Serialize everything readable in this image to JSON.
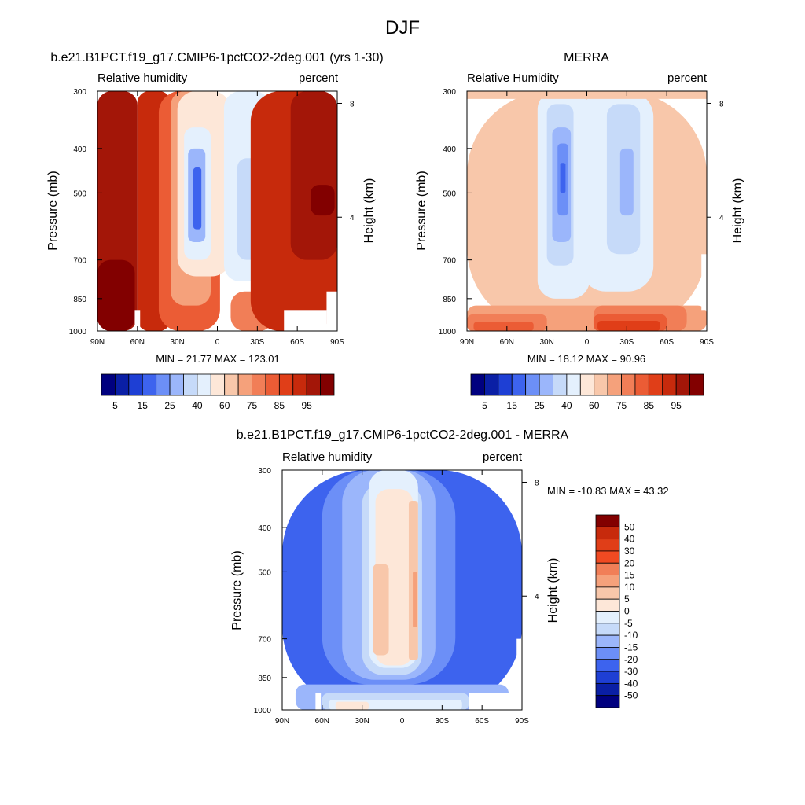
{
  "figure_title": "DJF",
  "chart_data": [
    {
      "type": "heatmap",
      "id": "model",
      "title": "b.e21.B1PCT.f19_g17.CMIP6-1pctCO2-2deg.001 (yrs 1-30)",
      "left_label": "Relative humidity",
      "right_label": "percent",
      "xlabel": "",
      "ylabel": "Pressure (mb)",
      "y2label": "Height (km)",
      "x_ticks": [
        "90N",
        "60N",
        "30N",
        "0",
        "30S",
        "60S",
        "90S"
      ],
      "y_ticks": [
        "300",
        "400",
        "500",
        "700",
        "850",
        "1000"
      ],
      "y_tick_values": [
        300,
        400,
        500,
        700,
        850,
        1000
      ],
      "y2_ticks": [
        "8",
        "4"
      ],
      "y2_tick_values": [
        8,
        4
      ],
      "xlim": [
        90,
        -90
      ],
      "ylim": [
        1000,
        300
      ],
      "stats": "MIN =  21.77  MAX = 123.01",
      "colorbar": {
        "orientation": "horizontal",
        "labels": [
          "5",
          "15",
          "25",
          "40",
          "60",
          "75",
          "85",
          "95"
        ],
        "colors": [
          "#00007f",
          "#0a1fa5",
          "#1e3fd4",
          "#3d63ee",
          "#6c8ff7",
          "#9bb6fb",
          "#c6daf9",
          "#e4f0fd",
          "#fde7d8",
          "#f8c7aa",
          "#f5a17b",
          "#f17e57",
          "#eb5c35",
          "#e03e18",
          "#c72a0c",
          "#a31608",
          "#820000"
        ]
      },
      "regions": [
        {
          "level": 15,
          "lat": [
            90,
            60
          ],
          "p": [
            1000,
            300
          ]
        },
        {
          "level": 16,
          "lat": [
            90,
            62
          ],
          "p": [
            1000,
            700
          ]
        },
        {
          "level": 14,
          "lat": [
            60,
            35
          ],
          "p": [
            1000,
            300
          ]
        },
        {
          "level": 12,
          "lat": [
            44,
            -2
          ],
          "p": [
            1000,
            300
          ]
        },
        {
          "level": 10,
          "lat": [
            35,
            5
          ],
          "p": [
            880,
            300
          ]
        },
        {
          "level": 8,
          "lat": [
            30,
            -10
          ],
          "p": [
            760,
            300
          ]
        },
        {
          "level": 7,
          "lat": [
            25,
            5
          ],
          "p": [
            700,
            360
          ]
        },
        {
          "level": 5,
          "lat": [
            22,
            9
          ],
          "p": [
            640,
            400
          ]
        },
        {
          "level": 3,
          "lat": [
            18,
            12
          ],
          "p": [
            600,
            440
          ]
        },
        {
          "level": 7,
          "lat": [
            -5,
            -40
          ],
          "p": [
            780,
            300
          ]
        },
        {
          "level": 6,
          "lat": [
            -15,
            -35
          ],
          "p": [
            700,
            420
          ]
        },
        {
          "level": 11,
          "lat": [
            -10,
            -42
          ],
          "p": [
            1000,
            820
          ]
        },
        {
          "level": 14,
          "lat": [
            -25,
            -90
          ],
          "p": [
            1000,
            300
          ]
        },
        {
          "level": 15,
          "lat": [
            -55,
            -90
          ],
          "p": [
            700,
            300
          ]
        },
        {
          "level": 16,
          "lat": [
            -70,
            -88
          ],
          "p": [
            560,
            480
          ]
        }
      ],
      "missing": [
        {
          "lat": [
            62,
            58
          ],
          "p": [
            1000,
            900
          ]
        },
        {
          "lat": [
            -50,
            -82
          ],
          "p": [
            1000,
            900
          ]
        },
        {
          "lat": [
            -82,
            -90
          ],
          "p": [
            1000,
            820
          ]
        }
      ]
    },
    {
      "type": "heatmap",
      "id": "obs",
      "title": "MERRA",
      "left_label": "Relative Humidity",
      "right_label": "percent",
      "xlabel": "",
      "ylabel": "Pressure (mb)",
      "y2label": "Height (km)",
      "x_ticks": [
        "90N",
        "60N",
        "30N",
        "0",
        "30S",
        "60S",
        "90S"
      ],
      "y_ticks": [
        "300",
        "400",
        "500",
        "700",
        "850",
        "1000"
      ],
      "y_tick_values": [
        300,
        400,
        500,
        700,
        850,
        1000
      ],
      "y2_ticks": [
        "8",
        "4"
      ],
      "y2_tick_values": [
        8,
        4
      ],
      "xlim": [
        90,
        -90
      ],
      "ylim": [
        1000,
        300
      ],
      "stats": "MIN =  18.12  MAX =  90.96",
      "colorbar": {
        "orientation": "horizontal",
        "labels": [
          "5",
          "15",
          "25",
          "40",
          "60",
          "75",
          "85",
          "95"
        ],
        "colors": [
          "#00007f",
          "#0a1fa5",
          "#1e3fd4",
          "#3d63ee",
          "#6c8ff7",
          "#9bb6fb",
          "#c6daf9",
          "#e4f0fd",
          "#fde7d8",
          "#f8c7aa",
          "#f5a17b",
          "#f17e57",
          "#eb5c35",
          "#e03e18",
          "#c72a0c",
          "#a31608",
          "#820000"
        ]
      },
      "regions": [
        {
          "level": 9,
          "lat": [
            90,
            -90
          ],
          "p": [
            1000,
            300
          ]
        },
        {
          "level": 10,
          "lat": [
            90,
            -90
          ],
          "p": [
            1000,
            880
          ]
        },
        {
          "level": 11,
          "lat": [
            90,
            30
          ],
          "p": [
            1000,
            920
          ]
        },
        {
          "level": 12,
          "lat": [
            85,
            40
          ],
          "p": [
            1000,
            955
          ]
        },
        {
          "level": 7,
          "lat": [
            37,
            -2
          ],
          "p": [
            850,
            300
          ]
        },
        {
          "level": 6,
          "lat": [
            30,
            10
          ],
          "p": [
            720,
            320
          ]
        },
        {
          "level": 5,
          "lat": [
            26,
            12
          ],
          "p": [
            640,
            360
          ]
        },
        {
          "level": 4,
          "lat": [
            22,
            14
          ],
          "p": [
            560,
            390
          ]
        },
        {
          "level": 3,
          "lat": [
            20,
            16
          ],
          "p": [
            500,
            430
          ]
        },
        {
          "level": 7,
          "lat": [
            5,
            -50
          ],
          "p": [
            820,
            300
          ]
        },
        {
          "level": 6,
          "lat": [
            -15,
            -40
          ],
          "p": [
            680,
            320
          ]
        },
        {
          "level": 5,
          "lat": [
            -25,
            -35
          ],
          "p": [
            560,
            400
          ]
        },
        {
          "level": 11,
          "lat": [
            -5,
            -75
          ],
          "p": [
            1000,
            880
          ]
        },
        {
          "level": 12,
          "lat": [
            -5,
            -60
          ],
          "p": [
            1000,
            920
          ]
        },
        {
          "level": 13,
          "lat": [
            -8,
            -55
          ],
          "p": [
            1000,
            950
          ]
        },
        {
          "level": 9,
          "lat": [
            92,
            -92
          ],
          "p": [
            312,
            300
          ]
        }
      ],
      "missing": [
        {
          "lat": [
            -86,
            -90
          ],
          "p": [
            900,
            680
          ]
        }
      ]
    },
    {
      "type": "heatmap",
      "id": "diff",
      "title": "b.e21.B1PCT.f19_g17.CMIP6-1pctCO2-2deg.001 - MERRA",
      "left_label": "Relative humidity",
      "right_label": "percent",
      "xlabel": "",
      "ylabel": "Pressure (mb)",
      "y2label": "Height (km)",
      "x_ticks": [
        "90N",
        "60N",
        "30N",
        "0",
        "30S",
        "60S",
        "90S"
      ],
      "y_ticks": [
        "300",
        "400",
        "500",
        "700",
        "850",
        "1000"
      ],
      "y_tick_values": [
        300,
        400,
        500,
        700,
        850,
        1000
      ],
      "y2_ticks": [
        "8",
        "4"
      ],
      "y2_tick_values": [
        8,
        4
      ],
      "xlim": [
        90,
        -90
      ],
      "ylim": [
        1000,
        300
      ],
      "stats": "MIN = -10.83  MAX =  43.32",
      "colorbar": {
        "orientation": "vertical",
        "labels": [
          "50",
          "40",
          "30",
          "20",
          "15",
          "10",
          "5",
          "0",
          "-5",
          "-10",
          "-15",
          "-20",
          "-30",
          "-40",
          "-50"
        ],
        "colors": [
          "#820000",
          "#c72a0c",
          "#e03e18",
          "#f04a22",
          "#f17e57",
          "#f5a17b",
          "#f8c7aa",
          "#fde7d8",
          "#e4f0fd",
          "#c6daf9",
          "#9bb6fb",
          "#6c8ff7",
          "#3d63ee",
          "#1e3fd4",
          "#0a1fa5",
          "#00007f"
        ]
      },
      "regions": [
        {
          "level": 12,
          "lat": [
            90,
            -90
          ],
          "p": [
            1000,
            300
          ]
        },
        {
          "level": 11,
          "lat": [
            60,
            -40
          ],
          "p": [
            880,
            300
          ]
        },
        {
          "level": 10,
          "lat": [
            45,
            -25
          ],
          "p": [
            860,
            300
          ]
        },
        {
          "level": 9,
          "lat": [
            30,
            -15
          ],
          "p": [
            840,
            320
          ]
        },
        {
          "level": 8,
          "lat": [
            25,
            -12
          ],
          "p": [
            810,
            300
          ]
        },
        {
          "level": 7,
          "lat": [
            20,
            -8
          ],
          "p": [
            800,
            330
          ]
        },
        {
          "level": 6,
          "lat": [
            22,
            10
          ],
          "p": [
            760,
            480
          ]
        },
        {
          "level": 6,
          "lat": [
            -5,
            -12
          ],
          "p": [
            780,
            350
          ]
        },
        {
          "level": 5,
          "lat": [
            -8,
            -11
          ],
          "p": [
            660,
            500
          ]
        },
        {
          "level": 10,
          "lat": [
            80,
            -80
          ],
          "p": [
            1000,
            880
          ]
        },
        {
          "level": 9,
          "lat": [
            60,
            -50
          ],
          "p": [
            1000,
            920
          ]
        },
        {
          "level": 8,
          "lat": [
            55,
            -45
          ],
          "p": [
            1000,
            950
          ]
        },
        {
          "level": 7,
          "lat": [
            50,
            25
          ],
          "p": [
            1000,
            960
          ]
        }
      ],
      "missing": [
        {
          "lat": [
            65,
            61
          ],
          "p": [
            1000,
            920
          ]
        },
        {
          "lat": [
            -50,
            -90
          ],
          "p": [
            1000,
            920
          ]
        },
        {
          "lat": [
            -86,
            -90
          ],
          "p": [
            920,
            700
          ]
        }
      ]
    }
  ]
}
